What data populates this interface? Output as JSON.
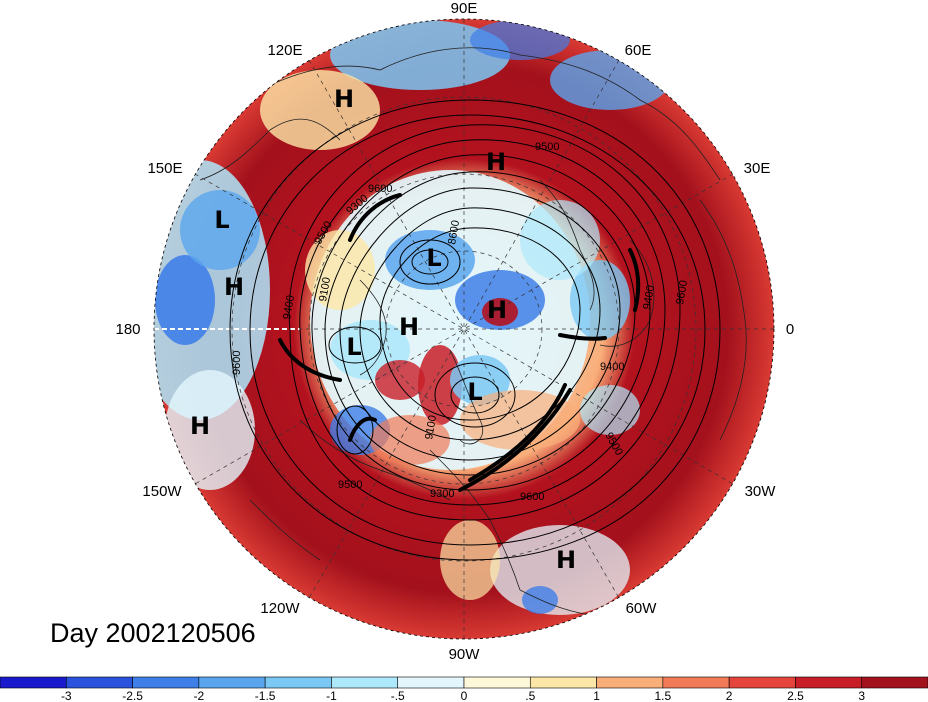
{
  "date_label": "Day 2002120506",
  "longitude_labels": [
    "90E",
    "60E",
    "30E",
    "0",
    "30W",
    "60W",
    "90W",
    "120W",
    "150W",
    "180",
    "150E",
    "120E"
  ],
  "pressure_centers": [
    {
      "type": "H"
    },
    {
      "type": "L"
    },
    {
      "type": "H"
    },
    {
      "type": "H"
    },
    {
      "type": "L"
    },
    {
      "type": "H"
    },
    {
      "type": "H"
    },
    {
      "type": "L"
    },
    {
      "type": "L"
    },
    {
      "type": "H"
    },
    {
      "type": "H"
    }
  ],
  "contour_labels": [
    "9600",
    "9500",
    "9400",
    "9300",
    "8600",
    "9100",
    "9600",
    "9400",
    "9500",
    "9400",
    "9100",
    "9500",
    "9300",
    "9600",
    "9600",
    "9500"
  ],
  "colorbar": {
    "colors": [
      "#1a1acc",
      "#2a52dd",
      "#3f7fe8",
      "#5aa6ee",
      "#7bc8f4",
      "#aee8fb",
      "#e3f6fc",
      "#fdf8d9",
      "#fde7a8",
      "#f9ae7a",
      "#f17a58",
      "#e4443c",
      "#c81e28",
      "#a3111c"
    ],
    "tick_labels": [
      "-3",
      "-2.5",
      "-2",
      "-1.5",
      "-1",
      "-.5",
      "0",
      ".5",
      "1",
      "1.5",
      "2",
      "2.5",
      "3"
    ]
  },
  "palette": {
    "warm": "#b3121e",
    "warm_mid": "#d93a33",
    "cool": "#3f7fe8",
    "land_line": "#222222"
  }
}
